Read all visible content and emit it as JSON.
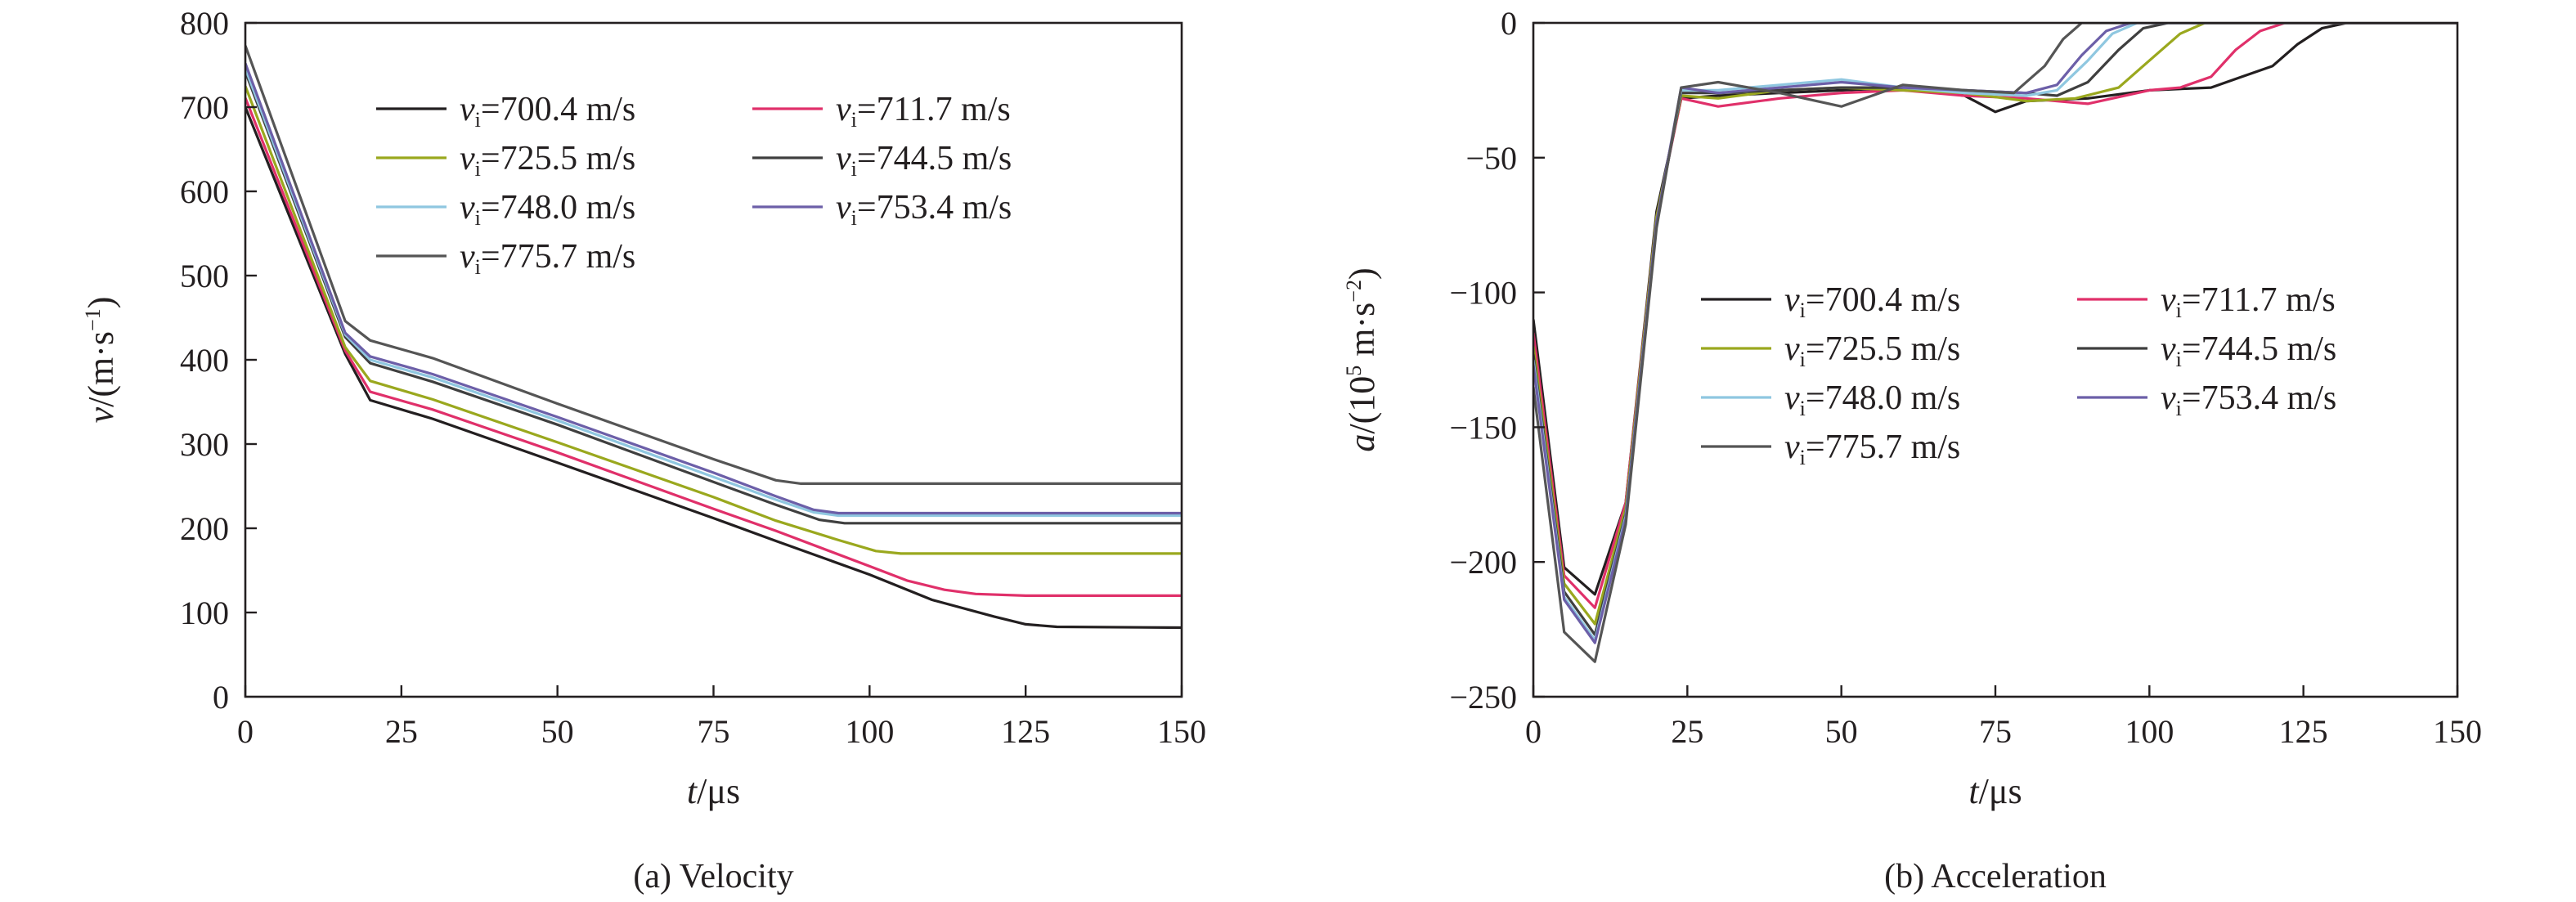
{
  "chart_data": [
    {
      "type": "line",
      "caption": "(a) Velocity",
      "xlabel": {
        "italic": "t",
        "rest": "/μs"
      },
      "ylabel": {
        "italic": "v",
        "rest": "/(m·s",
        "sup": "−1",
        "close": ")"
      },
      "xlim": [
        0,
        150
      ],
      "ylim": [
        0,
        800
      ],
      "xticks": [
        0,
        25,
        50,
        75,
        100,
        125,
        150
      ],
      "yticks": [
        100,
        200,
        300,
        400,
        500,
        600,
        700,
        800
      ],
      "grid": false,
      "legend_position": "top-left",
      "series": [
        {
          "name": "700.4 m/s",
          "color": "#231f20",
          "points": [
            [
              0,
              700
            ],
            [
              16,
              407
            ],
            [
              20,
              352
            ],
            [
              30,
              330
            ],
            [
              50,
              278
            ],
            [
              75,
              212
            ],
            [
              85,
              185
            ],
            [
              100,
              145
            ],
            [
              110,
              115
            ],
            [
              120,
              95
            ],
            [
              125,
              86
            ],
            [
              130,
              83
            ],
            [
              150,
              82
            ]
          ]
        },
        {
          "name": "711.7 m/s",
          "color": "#e0306a",
          "points": [
            [
              0,
              711
            ],
            [
              16,
              411
            ],
            [
              20,
              362
            ],
            [
              30,
              341
            ],
            [
              50,
              290
            ],
            [
              75,
              223
            ],
            [
              85,
              197
            ],
            [
              100,
              155
            ],
            [
              106,
              138
            ],
            [
              112,
              127
            ],
            [
              117,
              122
            ],
            [
              125,
              120
            ],
            [
              150,
              120
            ]
          ]
        },
        {
          "name": "725.5 m/s",
          "color": "#9aa81e",
          "points": [
            [
              0,
              725
            ],
            [
              16,
              415
            ],
            [
              20,
              375
            ],
            [
              30,
              353
            ],
            [
              50,
              302
            ],
            [
              75,
              237
            ],
            [
              85,
              209
            ],
            [
              95,
              186
            ],
            [
              101,
              173
            ],
            [
              105,
              170
            ],
            [
              150,
              170
            ]
          ]
        },
        {
          "name": "744.5 m/s",
          "color": "#3f3f3f",
          "points": [
            [
              0,
              742
            ],
            [
              16,
              427
            ],
            [
              20,
              396
            ],
            [
              30,
              374
            ],
            [
              50,
              323
            ],
            [
              75,
              255
            ],
            [
              85,
              228
            ],
            [
              92,
              210
            ],
            [
              96,
              206
            ],
            [
              150,
              206
            ]
          ]
        },
        {
          "name": "748.0 m/s",
          "color": "#8fc7e0",
          "points": [
            [
              0,
              746
            ],
            [
              16,
              430
            ],
            [
              20,
              400
            ],
            [
              30,
              379
            ],
            [
              50,
              328
            ],
            [
              75,
              261
            ],
            [
              85,
              234
            ],
            [
              91,
              219
            ],
            [
              95,
              215
            ],
            [
              150,
              215
            ]
          ]
        },
        {
          "name": "753.4 m/s",
          "color": "#6c5fa8",
          "points": [
            [
              0,
              752
            ],
            [
              16,
              432
            ],
            [
              20,
              404
            ],
            [
              30,
              383
            ],
            [
              50,
              332
            ],
            [
              75,
              266
            ],
            [
              85,
              238
            ],
            [
              91,
              222
            ],
            [
              95,
              218
            ],
            [
              150,
              218
            ]
          ]
        },
        {
          "name": "775.7 m/s",
          "color": "#555555",
          "points": [
            [
              0,
              773
            ],
            [
              16,
              446
            ],
            [
              20,
              423
            ],
            [
              30,
              402
            ],
            [
              50,
              348
            ],
            [
              75,
              282
            ],
            [
              85,
              257
            ],
            [
              89,
              253
            ],
            [
              150,
              253
            ]
          ]
        }
      ]
    },
    {
      "type": "line",
      "caption": "(b) Acceleration",
      "xlabel": {
        "italic": "t",
        "rest": "/μs"
      },
      "ylabel": {
        "italic": "a",
        "rest": "/(10",
        "sup1": "5",
        "mid": " m·s",
        "sup": "−2",
        "close": ")"
      },
      "xlim": [
        0,
        150
      ],
      "ylim": [
        -250,
        0
      ],
      "xticks": [
        0,
        25,
        50,
        75,
        100,
        125,
        150
      ],
      "yticks": [
        0,
        -50,
        -100,
        -150,
        -200,
        -250
      ],
      "ytick_labels": [
        "0",
        "−50",
        "−100",
        "−150",
        "−200",
        "−250"
      ],
      "grid": false,
      "legend_position": "center-right",
      "series": [
        {
          "name": "700.4 m/s",
          "color": "#231f20",
          "points": [
            [
              0,
              -110
            ],
            [
              5,
              -202
            ],
            [
              10,
              -212
            ],
            [
              15,
              -178
            ],
            [
              20,
              -70
            ],
            [
              24,
              -28
            ],
            [
              30,
              -27
            ],
            [
              40,
              -26
            ],
            [
              50,
              -25
            ],
            [
              60,
              -24
            ],
            [
              70,
              -27
            ],
            [
              75,
              -33
            ],
            [
              80,
              -29
            ],
            [
              90,
              -28
            ],
            [
              100,
              -25
            ],
            [
              110,
              -24
            ],
            [
              115,
              -20
            ],
            [
              120,
              -16
            ],
            [
              124,
              -8
            ],
            [
              128,
              -2
            ],
            [
              132,
              0
            ],
            [
              150,
              0
            ]
          ]
        },
        {
          "name": "711.7 m/s",
          "color": "#e0306a",
          "points": [
            [
              0,
              -115
            ],
            [
              5,
              -205
            ],
            [
              10,
              -217
            ],
            [
              15,
              -178
            ],
            [
              20,
              -72
            ],
            [
              24,
              -28
            ],
            [
              30,
              -31
            ],
            [
              40,
              -28
            ],
            [
              50,
              -26
            ],
            [
              60,
              -25
            ],
            [
              70,
              -27
            ],
            [
              80,
              -28
            ],
            [
              90,
              -30
            ],
            [
              100,
              -25
            ],
            [
              105,
              -24
            ],
            [
              110,
              -20
            ],
            [
              114,
              -10
            ],
            [
              118,
              -3
            ],
            [
              122,
              0
            ],
            [
              150,
              0
            ]
          ]
        },
        {
          "name": "725.5 m/s",
          "color": "#9aa81e",
          "points": [
            [
              0,
              -120
            ],
            [
              5,
              -208
            ],
            [
              10,
              -223
            ],
            [
              15,
              -180
            ],
            [
              20,
              -72
            ],
            [
              24,
              -27
            ],
            [
              30,
              -28
            ],
            [
              40,
              -25
            ],
            [
              50,
              -24
            ],
            [
              60,
              -25
            ],
            [
              70,
              -26
            ],
            [
              80,
              -29
            ],
            [
              88,
              -28
            ],
            [
              95,
              -24
            ],
            [
              100,
              -14
            ],
            [
              105,
              -4
            ],
            [
              109,
              0
            ],
            [
              150,
              0
            ]
          ]
        },
        {
          "name": "744.5 m/s",
          "color": "#3f3f3f",
          "points": [
            [
              0,
              -123
            ],
            [
              5,
              -211
            ],
            [
              10,
              -227
            ],
            [
              15,
              -182
            ],
            [
              20,
              -74
            ],
            [
              24,
              -26
            ],
            [
              30,
              -26
            ],
            [
              40,
              -25
            ],
            [
              50,
              -24
            ],
            [
              60,
              -24
            ],
            [
              70,
              -25
            ],
            [
              80,
              -26
            ],
            [
              85,
              -27
            ],
            [
              90,
              -22
            ],
            [
              95,
              -10
            ],
            [
              99,
              -2
            ],
            [
              103,
              0
            ],
            [
              150,
              0
            ]
          ]
        },
        {
          "name": "748.0 m/s",
          "color": "#8fc7e0",
          "points": [
            [
              0,
              -125
            ],
            [
              5,
              -213
            ],
            [
              10,
              -229
            ],
            [
              15,
              -183
            ],
            [
              20,
              -74
            ],
            [
              24,
              -25
            ],
            [
              30,
              -25
            ],
            [
              40,
              -23
            ],
            [
              50,
              -21
            ],
            [
              60,
              -24
            ],
            [
              70,
              -26
            ],
            [
              80,
              -27
            ],
            [
              85,
              -25
            ],
            [
              90,
              -14
            ],
            [
              94,
              -4
            ],
            [
              98,
              0
            ],
            [
              150,
              0
            ]
          ]
        },
        {
          "name": "753.4 m/s",
          "color": "#6c5fa8",
          "points": [
            [
              0,
              -127
            ],
            [
              5,
              -214
            ],
            [
              10,
              -230
            ],
            [
              15,
              -184
            ],
            [
              20,
              -74
            ],
            [
              24,
              -24
            ],
            [
              30,
              -26
            ],
            [
              40,
              -24
            ],
            [
              50,
              -22
            ],
            [
              60,
              -24
            ],
            [
              70,
              -25
            ],
            [
              80,
              -26
            ],
            [
              85,
              -23
            ],
            [
              89,
              -12
            ],
            [
              93,
              -3
            ],
            [
              97,
              0
            ],
            [
              150,
              0
            ]
          ]
        },
        {
          "name": "775.7 m/s",
          "color": "#555555",
          "points": [
            [
              0,
              -135
            ],
            [
              5,
              -226
            ],
            [
              10,
              -237
            ],
            [
              15,
              -186
            ],
            [
              20,
              -76
            ],
            [
              24,
              -24
            ],
            [
              30,
              -22
            ],
            [
              40,
              -26
            ],
            [
              50,
              -31
            ],
            [
              60,
              -23
            ],
            [
              70,
              -25
            ],
            [
              78,
              -26
            ],
            [
              83,
              -16
            ],
            [
              86,
              -6
            ],
            [
              89,
              0
            ],
            [
              150,
              0
            ]
          ]
        }
      ]
    }
  ]
}
